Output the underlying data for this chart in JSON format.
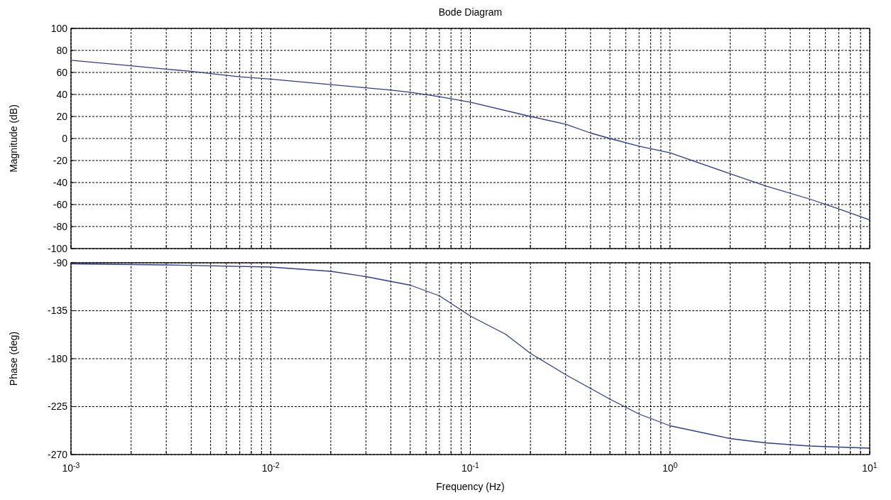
{
  "chart_data": [
    {
      "type": "line",
      "title": "Bode Diagram",
      "ylabel": "Magnitude (dB)",
      "log": "x",
      "grid": true,
      "tick_labels": "y",
      "xlim": [
        0.001,
        10
      ],
      "ylim": [
        -100,
        100
      ],
      "xticks": [
        0.001,
        0.002,
        0.003,
        0.004,
        0.005,
        0.006,
        0.007,
        0.008,
        0.009,
        0.01,
        0.02,
        0.03,
        0.04,
        0.05,
        0.06,
        0.07,
        0.08,
        0.09,
        0.1,
        0.2,
        0.3,
        0.4,
        0.5,
        0.6,
        0.7,
        0.8,
        0.9,
        1,
        2,
        3,
        4,
        5,
        6,
        7,
        8,
        9,
        10
      ],
      "yticks": [
        -100,
        -80,
        -60,
        -40,
        -20,
        0,
        20,
        40,
        60,
        80,
        100
      ],
      "series": [
        {
          "color": "#2e3d8f",
          "x": [
            0.001,
            0.002,
            0.003,
            0.004,
            0.005,
            0.007,
            0.01,
            0.02,
            0.03,
            0.04,
            0.05,
            0.07,
            0.1,
            0.2,
            0.3,
            0.4,
            0.5,
            0.7,
            1,
            2,
            3,
            5,
            7,
            10
          ],
          "values": [
            71,
            66,
            63,
            61,
            59,
            56,
            54,
            49,
            46,
            44,
            42,
            38,
            33,
            20,
            13,
            5,
            0,
            -7,
            -13,
            -32,
            -43,
            -55,
            -64,
            -74
          ]
        }
      ]
    },
    {
      "type": "line",
      "xlabel": "Frequency  (Hz)",
      "ylabel": "Phase (deg)",
      "log": "x",
      "grid": true,
      "xlim": [
        0.001,
        10
      ],
      "ylim": [
        -270,
        -90
      ],
      "xticks": [
        {
          "value": 0.001,
          "label": "10$^{-3}$"
        },
        {
          "value": 0.002,
          "label": null
        },
        {
          "value": 0.003,
          "label": null
        },
        {
          "value": 0.004,
          "label": null
        },
        {
          "value": 0.005,
          "label": null
        },
        {
          "value": 0.006,
          "label": null
        },
        {
          "value": 0.007,
          "label": null
        },
        {
          "value": 0.008,
          "label": null
        },
        {
          "value": 0.009,
          "label": null
        },
        {
          "value": 0.01,
          "label": "10$^{-2}$"
        },
        {
          "value": 0.02,
          "label": null
        },
        {
          "value": 0.03,
          "label": null
        },
        {
          "value": 0.04,
          "label": null
        },
        {
          "value": 0.05,
          "label": null
        },
        {
          "value": 0.06,
          "label": null
        },
        {
          "value": 0.07,
          "label": null
        },
        {
          "value": 0.08,
          "label": null
        },
        {
          "value": 0.09,
          "label": null
        },
        {
          "value": 0.1,
          "label": "10$^{-1}$"
        },
        {
          "value": 0.2,
          "label": null
        },
        {
          "value": 0.3,
          "label": null
        },
        {
          "value": 0.4,
          "label": null
        },
        {
          "value": 0.5,
          "label": null
        },
        {
          "value": 0.6,
          "label": null
        },
        {
          "value": 0.7,
          "label": null
        },
        {
          "value": 0.8,
          "label": null
        },
        {
          "value": 0.9,
          "label": null
        },
        {
          "value": 1,
          "label": "10$^{0}$"
        },
        {
          "value": 2,
          "label": null
        },
        {
          "value": 3,
          "label": null
        },
        {
          "value": 4,
          "label": null
        },
        {
          "value": 5,
          "label": null
        },
        {
          "value": 6,
          "label": null
        },
        {
          "value": 7,
          "label": null
        },
        {
          "value": 8,
          "label": null
        },
        {
          "value": 9,
          "label": null
        },
        {
          "value": 10,
          "label": "10$^{1}$"
        }
      ],
      "yticks": [
        -270,
        -225,
        -180,
        -135,
        -90
      ],
      "series": [
        {
          "color": "#2e3d8f",
          "x": [
            0.001,
            0.003,
            0.01,
            0.02,
            0.03,
            0.05,
            0.07,
            0.1,
            0.15,
            0.2,
            0.3,
            0.5,
            0.7,
            1,
            2,
            3,
            5,
            10
          ],
          "values": [
            -91,
            -92,
            -94,
            -98,
            -103,
            -111,
            -121,
            -140,
            -157,
            -175,
            -195,
            -218,
            -232,
            -243,
            -255,
            -259,
            -262,
            -264
          ]
        }
      ]
    }
  ]
}
